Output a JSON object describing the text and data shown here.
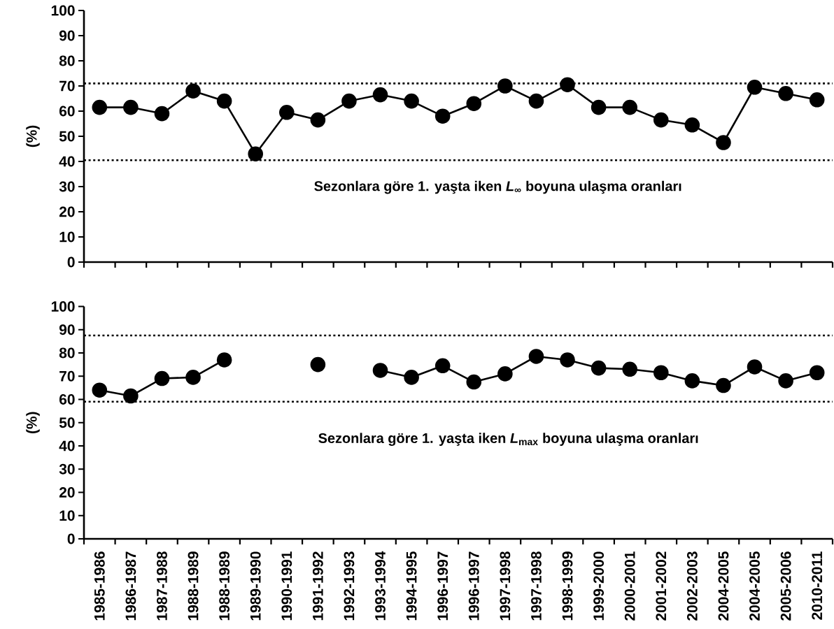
{
  "chart_data": [
    {
      "type": "line",
      "categories": [
        null,
        null,
        null,
        null,
        null,
        null,
        null,
        null,
        null,
        null,
        null,
        null,
        null,
        null,
        null,
        null,
        null,
        null,
        null,
        null,
        null,
        null,
        null,
        null
      ],
      "values": [
        61.5,
        61.5,
        59,
        68,
        64,
        43,
        59.5,
        56.5,
        64,
        66.5,
        64,
        58,
        63,
        70,
        64,
        70.5,
        61.5,
        61.5,
        56.5,
        54.5,
        47.5,
        69.5,
        67,
        64.5
      ],
      "color": "#000000",
      "marker": "circle",
      "line_style": "solid",
      "ylabel": "(%)",
      "ylim": [
        0,
        100
      ],
      "yticks": [
        0,
        10,
        20,
        30,
        40,
        50,
        60,
        70,
        80,
        90,
        100
      ],
      "ref_lines": [
        {
          "axis": "y",
          "value": 71,
          "color": "#000000",
          "line_style": "dotted"
        },
        {
          "axis": "y",
          "value": 40.5,
          "color": "#000000",
          "line_style": "dotted"
        }
      ],
      "annotations": [
        "Sezonlara göre 1. yaşta iken *L*$_{∞}$ boyuna ulaşma oranları"
      ]
    },
    {
      "type": "line",
      "categories": [
        "1985-1986",
        "1986-1987",
        "1987-1988",
        "1988-1989",
        "1988-1989",
        "1989-1990",
        "1990-1991",
        "1991-1992",
        "1992-1993",
        "1993-1994",
        "1994-1995",
        "1996-1997",
        "1996-1997",
        "1997-1998",
        "1997-1998",
        "1998-1999",
        "1999-2000",
        "2000-2001",
        "2001-2002",
        "2002-2003",
        "2004-2005",
        "2004-2005",
        "2005-2006",
        "2010-2011"
      ],
      "values": [
        64,
        61.5,
        69,
        69.5,
        77,
        null,
        null,
        75,
        null,
        72.5,
        69.5,
        74.5,
        67.5,
        71,
        78.5,
        77,
        73.5,
        73,
        71.5,
        68,
        66,
        74,
        68,
        71.5
      ],
      "color": "#000000",
      "marker": "circle",
      "line_style": "solid",
      "ylabel": "(%)",
      "ylim": [
        0,
        100
      ],
      "yticks": [
        0,
        10,
        20,
        30,
        40,
        50,
        60,
        70,
        80,
        90,
        100
      ],
      "ref_lines": [
        {
          "axis": "y",
          "value": 87.5,
          "color": "#000000",
          "line_style": "dotted"
        },
        {
          "axis": "y",
          "value": 59,
          "color": "#000000",
          "line_style": "dotted"
        }
      ],
      "annotations": [
        "Sezonlara göre 1. yaşta iken *L*$_{max}$ boyuna ulaşma oranları"
      ]
    }
  ]
}
